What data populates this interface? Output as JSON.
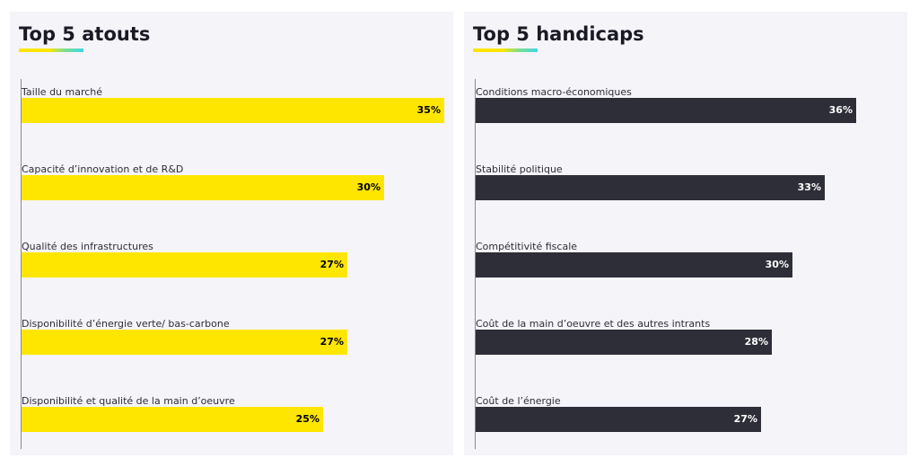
{
  "chart_data": [
    {
      "type": "bar",
      "orientation": "horizontal",
      "title": "Top 5 atouts",
      "bar_color": "#ffe600",
      "value_text_color": "#000000",
      "categories": [
        "Taille du marché",
        "Capacité d’innovation et de R&D",
        "Qualité des infrastructures",
        "Disponibilité d’énergie verte/ bas-carbone",
        "Disponibilité et qualité de la main d’oeuvre"
      ],
      "values": [
        35,
        30,
        27,
        27,
        25
      ],
      "value_labels": [
        "35%",
        "30%",
        "27%",
        "27%",
        "25%"
      ],
      "xlim": [
        0,
        35
      ],
      "grid": false,
      "legend": "none"
    },
    {
      "type": "bar",
      "orientation": "horizontal",
      "title": "Top 5 handicaps",
      "bar_color": "#2e2e38",
      "value_text_color": "#ffffff",
      "categories": [
        "Conditions macro-économiques",
        "Stabilité politique",
        "Compétitivité fiscale",
        "Coût de la main d’oeuvre et des autres intrants",
        "Coût de l’énergie"
      ],
      "values": [
        36,
        33,
        30,
        28,
        27
      ],
      "value_labels": [
        "36%",
        "33%",
        "30%",
        "28%",
        "27%"
      ],
      "xlim": [
        0,
        40
      ],
      "grid": false,
      "legend": "none"
    }
  ],
  "colors": {
    "panel_background": "#f5f4f9",
    "accent_gradient": [
      "#ffe600",
      "#7fe08a",
      "#3fd6e8"
    ]
  }
}
